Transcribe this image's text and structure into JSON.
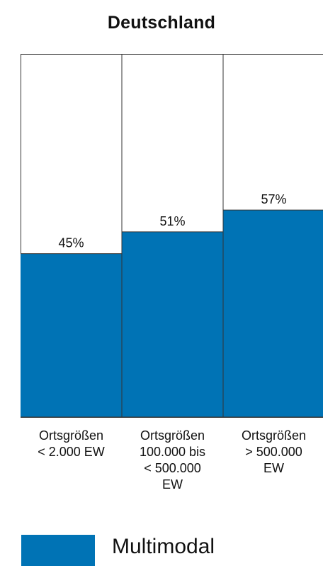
{
  "chart_data": {
    "type": "bar",
    "title": "Deutschland",
    "categories": [
      "Ortsgrößen\n< 2.000 EW",
      "Ortsgrößen\n100.000 bis\n< 500.000\nEW",
      "Ortsgrößen\n> 500.000\nEW"
    ],
    "series": [
      {
        "name": "Multimodal",
        "values": [
          45,
          51,
          57
        ]
      }
    ],
    "data_labels": [
      "45%",
      "51%",
      "57%"
    ],
    "ylim": [
      0,
      100
    ],
    "bar_color": "#0073b5",
    "legend": "bottom-left",
    "grid": false
  }
}
